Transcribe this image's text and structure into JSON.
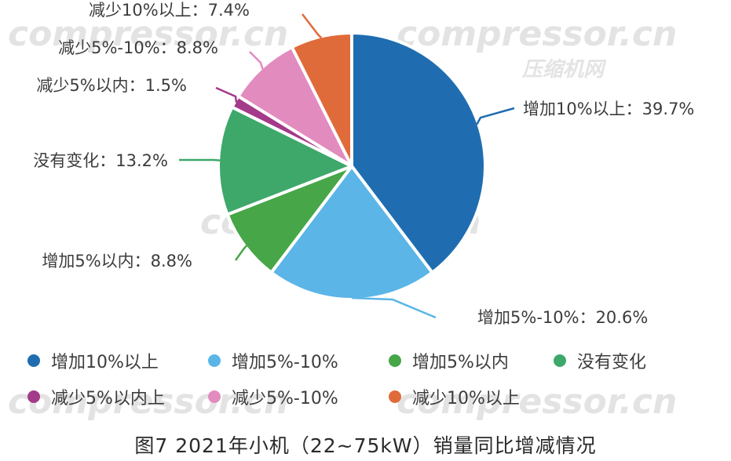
{
  "chart_data": {
    "type": "pie",
    "slices": [
      {
        "name": "增加10%以上",
        "value": 39.7,
        "label": "增加10%以上：39.7%",
        "color": "#1F6DB0"
      },
      {
        "name": "增加5%-10%",
        "value": 20.6,
        "label": "增加5%-10%：20.6%",
        "color": "#5BB5E6"
      },
      {
        "name": "增加5%以内",
        "value": 8.8,
        "label": "增加5%以内：8.8%",
        "color": "#47A648"
      },
      {
        "name": "没有变化",
        "value": 13.2,
        "label": "没有变化：13.2%",
        "color": "#3EA86B"
      },
      {
        "name": "减少5%以内",
        "value": 1.5,
        "label": "减少5%以内：1.5%",
        "color": "#A33A8A"
      },
      {
        "name": "减少5%-10%",
        "value": 8.8,
        "label": "减少5%-10%：8.8%",
        "color": "#E28BBF"
      },
      {
        "name": "减少10%以上",
        "value": 7.4,
        "label": "减少10%以上：7.4%",
        "color": "#E06B3A"
      }
    ],
    "legend": [
      {
        "label": "增加10%以上",
        "color": "#1F6DB0"
      },
      {
        "label": "增加5%-10%",
        "color": "#5BB5E6"
      },
      {
        "label": "增加5%以内",
        "color": "#47A648"
      },
      {
        "label": "没有变化",
        "color": "#3EA86B"
      },
      {
        "label": "减少5%以内上",
        "color": "#A33A8A"
      },
      {
        "label": "减少5%-10%",
        "color": "#E28BBF"
      },
      {
        "label": "减少10%以上",
        "color": "#E06B3A"
      }
    ],
    "legend_placement": "bottom",
    "caption": "图7 2021年小机（22~75kW）销量同比增减情况"
  },
  "watermark": {
    "text": "compressor.cn",
    "subtext": "压缩机网"
  }
}
